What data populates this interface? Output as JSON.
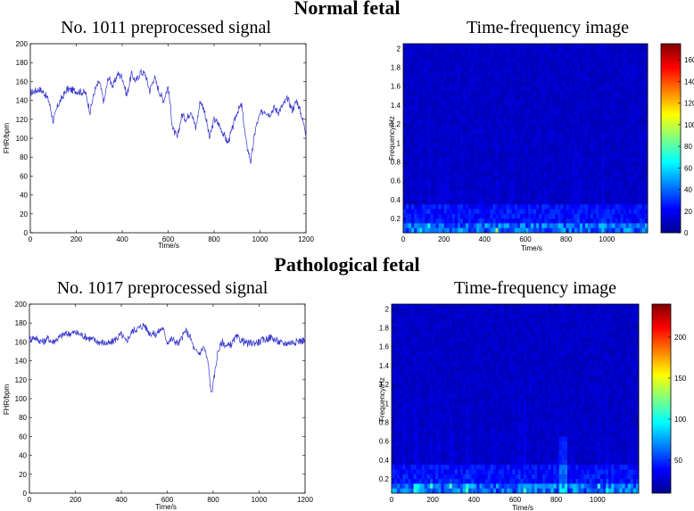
{
  "sections": [
    {
      "heading": "Normal fetal",
      "signal": {
        "title": "No. 1011 preprocessed signal",
        "xlabel": "Time/s",
        "ylabel": "FHR/bpm",
        "xticks": [
          "0",
          "200",
          "400",
          "600",
          "800",
          "1000",
          "1200"
        ],
        "yticks": [
          "0",
          "20",
          "40",
          "60",
          "80",
          "100",
          "120",
          "140",
          "160",
          "180",
          "200"
        ]
      },
      "tf": {
        "title": "Time-frequency image",
        "xlabel": "Time/s",
        "ylabel": "Frequency/Hz",
        "xticks": [
          "0",
          "200",
          "400",
          "600",
          "800",
          "1000"
        ],
        "yticks": [
          "0.2",
          "0.4",
          "0.6",
          "0.8",
          "1",
          "1.2",
          "1.4",
          "1.6",
          "1.8",
          "2"
        ],
        "colorbar_ticks": [
          "0",
          "20",
          "40",
          "60",
          "80",
          "100",
          "120",
          "140",
          "160"
        ]
      }
    },
    {
      "heading": "Pathological fetal",
      "signal": {
        "title": "No. 1017 preprocessed signal",
        "xlabel": "Time/s",
        "ylabel": "FHR/bpm",
        "xticks": [
          "0",
          "200",
          "400",
          "600",
          "800",
          "1000",
          "1200"
        ],
        "yticks": [
          "0",
          "20",
          "40",
          "60",
          "80",
          "100",
          "120",
          "140",
          "160",
          "180",
          "200"
        ]
      },
      "tf": {
        "title": "Time-frequency image",
        "xlabel": "Time/s",
        "ylabel": "Frequency/Hz",
        "xticks": [
          "0",
          "200",
          "400",
          "600",
          "800",
          "1000"
        ],
        "yticks": [
          "0.2",
          "0.4",
          "0.6",
          "0.8",
          "1",
          "1.2",
          "1.4",
          "1.6",
          "1.8",
          "2"
        ],
        "colorbar_ticks": [
          "50",
          "100",
          "150",
          "200"
        ]
      }
    }
  ],
  "chart_data": [
    {
      "type": "line",
      "series": [
        {
          "x": [
            0,
            20,
            40,
            60,
            80,
            100,
            120,
            160,
            200,
            240,
            260,
            280,
            300,
            320,
            340,
            360,
            380,
            400,
            420,
            440,
            460,
            480,
            500,
            520,
            540,
            560,
            580,
            600,
            620,
            640,
            660,
            680,
            700,
            720,
            740,
            760,
            780,
            800,
            820,
            840,
            860,
            880,
            900,
            920,
            940,
            960,
            980,
            1000,
            1020,
            1040,
            1060,
            1080,
            1100,
            1120,
            1140,
            1160,
            1180,
            1200
          ],
          "values": [
            148,
            150,
            152,
            148,
            140,
            118,
            135,
            152,
            150,
            148,
            128,
            150,
            160,
            138,
            165,
            155,
            168,
            165,
            145,
            168,
            160,
            170,
            168,
            150,
            165,
            150,
            140,
            155,
            110,
            100,
            125,
            120,
            130,
            110,
            140,
            128,
            100,
            120,
            115,
            105,
            95,
            110,
            128,
            135,
            95,
            75,
            110,
            125,
            130,
            125,
            132,
            128,
            135,
            142,
            130,
            140,
            125,
            105
          ]
        }
      ],
      "xlim": [
        0,
        1200
      ],
      "ylim": [
        0,
        200
      ],
      "color": "#3333cc"
    },
    {
      "type": "heatmap",
      "xlim": [
        0,
        1200
      ],
      "ylim": [
        0.05,
        2.05
      ],
      "color_range": [
        0,
        170
      ],
      "colormap": "jet"
    },
    {
      "type": "line",
      "series": [
        {
          "x": [
            0,
            20,
            40,
            60,
            80,
            100,
            150,
            200,
            250,
            300,
            350,
            400,
            420,
            450,
            480,
            500,
            520,
            550,
            580,
            600,
            620,
            650,
            680,
            700,
            720,
            740,
            760,
            780,
            790,
            800,
            820,
            840,
            860,
            880,
            900,
            950,
            1000,
            1050,
            1100,
            1150,
            1200
          ],
          "values": [
            163,
            165,
            162,
            160,
            164,
            160,
            168,
            170,
            165,
            160,
            158,
            168,
            160,
            172,
            175,
            178,
            170,
            168,
            175,
            160,
            163,
            158,
            172,
            165,
            150,
            148,
            155,
            135,
            105,
            115,
            150,
            160,
            155,
            158,
            165,
            158,
            160,
            165,
            158,
            160,
            162
          ]
        }
      ],
      "xlim": [
        0,
        1200
      ],
      "ylim": [
        0,
        200
      ],
      "color": "#3333cc"
    },
    {
      "type": "heatmap",
      "xlim": [
        0,
        1200
      ],
      "ylim": [
        0.05,
        2.05
      ],
      "color_range": [
        0,
        240
      ],
      "colormap": "jet"
    }
  ]
}
